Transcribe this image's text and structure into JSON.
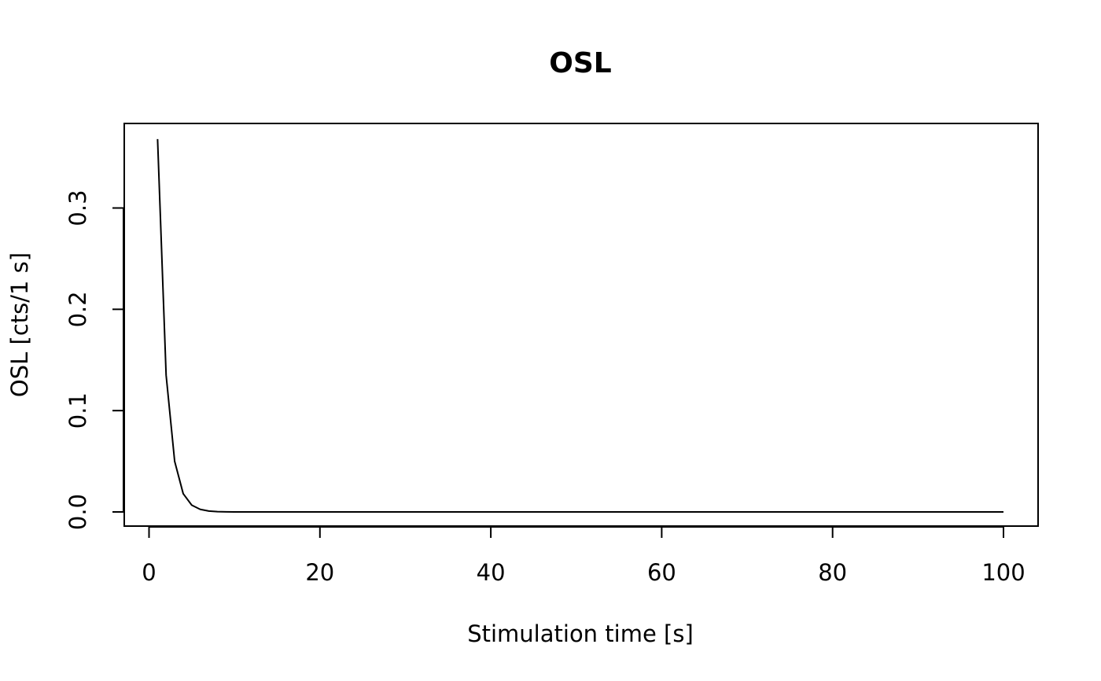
{
  "chart_data": {
    "type": "line",
    "title": "OSL",
    "xlabel": "Stimulation time [s]",
    "ylabel": "OSL [cts/1 s]",
    "xlim": [
      0,
      100
    ],
    "ylim": [
      0,
      0.3
    ],
    "xticks": [
      0,
      20,
      40,
      60,
      80,
      100
    ],
    "xtick_labels": [
      "0",
      "20",
      "40",
      "60",
      "80",
      "100"
    ],
    "yticks": [
      0,
      0.1,
      0.2,
      0.3
    ],
    "ytick_labels": [
      "0.0",
      "0.1",
      "0.2",
      "0.3"
    ],
    "grid": false,
    "series_color": "#000000",
    "series": [
      {
        "x": [
          1,
          2,
          3,
          4,
          5,
          6,
          7,
          8,
          9,
          10,
          15,
          20,
          30,
          40,
          50,
          60,
          70,
          80,
          90,
          100
        ],
        "y": [
          0.368,
          0.135,
          0.05,
          0.018,
          0.0067,
          0.0025,
          0.0009,
          0.0003,
          0.0001,
          5e-05,
          0,
          0,
          0,
          0,
          0,
          0,
          0,
          0,
          0,
          0
        ]
      }
    ]
  }
}
